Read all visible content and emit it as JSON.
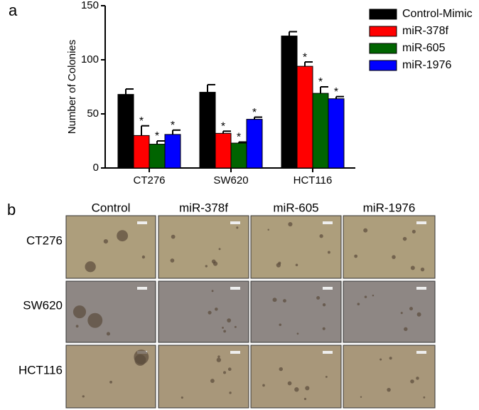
{
  "panel_labels": [
    "a",
    "b"
  ],
  "chart_data": {
    "type": "bar",
    "y_label": "Number of Colonies",
    "categories": [
      "CT276",
      "SW620",
      "HCT116"
    ],
    "series": [
      {
        "name": "Control-Mimic",
        "color": "#000000",
        "values": [
          68,
          70,
          122
        ],
        "errors": [
          5,
          7,
          4
        ]
      },
      {
        "name": "miR-378f",
        "color": "#ff0000",
        "values": [
          30,
          32,
          94
        ],
        "errors": [
          9,
          2,
          4
        ]
      },
      {
        "name": "miR-605",
        "color": "#006400",
        "values": [
          22,
          23,
          69
        ],
        "errors": [
          3,
          1,
          6
        ]
      },
      {
        "name": "miR-1976",
        "color": "#0000ff",
        "values": [
          31,
          45,
          64
        ],
        "errors": [
          4,
          2,
          2
        ]
      }
    ],
    "significance_label": "*",
    "ylim": [
      0,
      150
    ],
    "yticks": [
      0,
      50,
      100,
      150
    ],
    "grid": false,
    "legend": "top-right"
  },
  "micrographs": {
    "column_headers": [
      "Control",
      "miR-378f",
      "miR-605",
      "miR-1976"
    ],
    "row_labels": [
      "CT276",
      "SW620",
      "HCT116"
    ]
  }
}
